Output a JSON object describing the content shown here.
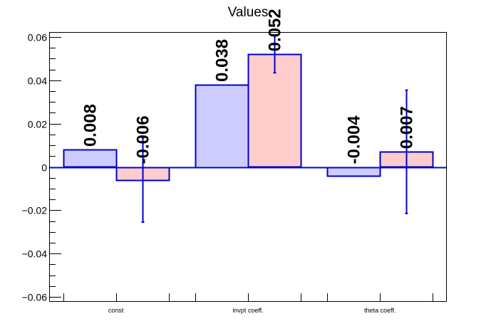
{
  "chart_data": {
    "type": "bar",
    "title": "Values",
    "xlabel": "",
    "ylabel": "",
    "categories": [
      "const",
      "invpt coeff.",
      "theta coeff."
    ],
    "ylim": [
      -0.062,
      0.062
    ],
    "yticks": [
      -0.06,
      -0.04,
      -0.02,
      0,
      0.02,
      0.04,
      0.06
    ],
    "ytick_labels": [
      "−0.06",
      "−0.04",
      "−0.02",
      "0",
      "0.02",
      "0.04",
      "0.06"
    ],
    "grid": false,
    "series": [
      {
        "color": "#ccccff",
        "edge_color": "#0000cc",
        "values": [
          0.008,
          0.038,
          -0.004
        ],
        "labels": [
          "0.008",
          "0.038",
          "-0.004"
        ],
        "errors": [
          0,
          0,
          0
        ]
      },
      {
        "color": "#ffcccc",
        "edge_color": "#0000cc",
        "values": [
          -0.006,
          0.052,
          0.007
        ],
        "labels": [
          "-0.006",
          "0.052",
          "0.007"
        ],
        "errors": [
          0.0195,
          0.0085,
          0.0285
        ]
      }
    ]
  }
}
